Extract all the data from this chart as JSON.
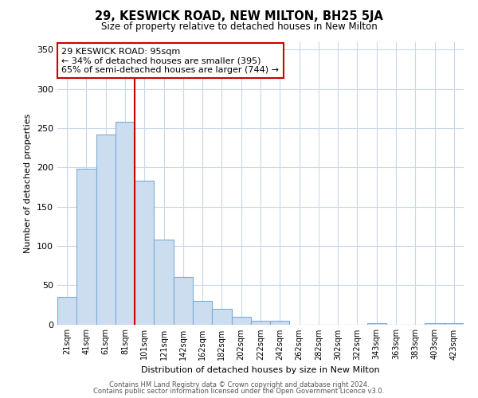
{
  "title": "29, KESWICK ROAD, NEW MILTON, BH25 5JA",
  "subtitle": "Size of property relative to detached houses in New Milton",
  "xlabel": "Distribution of detached houses by size in New Milton",
  "ylabel": "Number of detached properties",
  "bar_labels": [
    "21sqm",
    "41sqm",
    "61sqm",
    "81sqm",
    "101sqm",
    "121sqm",
    "142sqm",
    "162sqm",
    "182sqm",
    "202sqm",
    "222sqm",
    "242sqm",
    "262sqm",
    "282sqm",
    "302sqm",
    "322sqm",
    "343sqm",
    "363sqm",
    "383sqm",
    "403sqm",
    "423sqm"
  ],
  "bar_values": [
    35,
    198,
    242,
    258,
    183,
    108,
    60,
    30,
    20,
    10,
    5,
    5,
    0,
    0,
    0,
    0,
    2,
    0,
    0,
    2,
    2
  ],
  "bar_color": "#ccddf0",
  "bar_edgecolor": "#7aadd4",
  "vline_color": "#cc0000",
  "annotation_title": "29 KESWICK ROAD: 95sqm",
  "annotation_line1": "← 34% of detached houses are smaller (395)",
  "annotation_line2": "65% of semi-detached houses are larger (744) →",
  "annotation_box_edgecolor": "#cc0000",
  "ylim": [
    0,
    360
  ],
  "yticks": [
    0,
    50,
    100,
    150,
    200,
    250,
    300,
    350
  ],
  "footer1": "Contains HM Land Registry data © Crown copyright and database right 2024.",
  "footer2": "Contains public sector information licensed under the Open Government Licence v3.0.",
  "background_color": "#ffffff",
  "grid_color": "#c8d8ea"
}
